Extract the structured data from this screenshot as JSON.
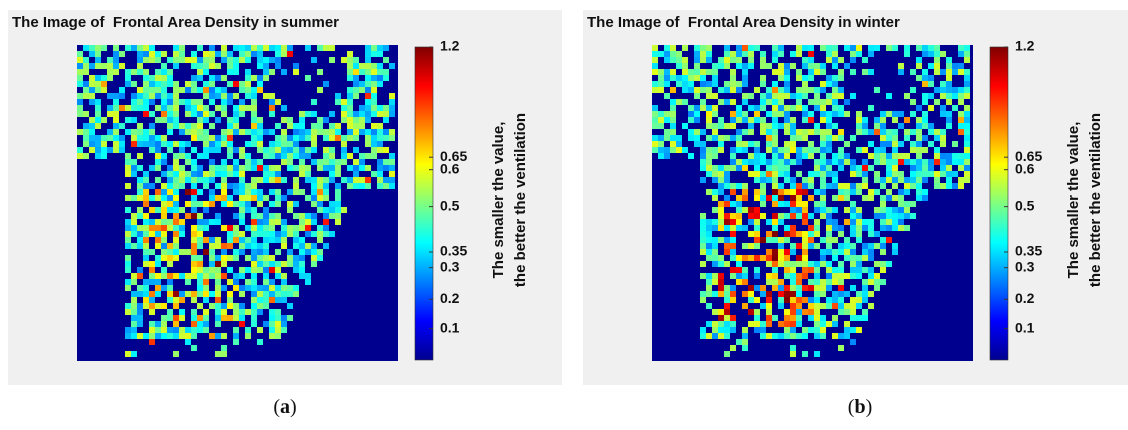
{
  "panels": [
    {
      "title": "The Image of  Frontal Area Density in summer",
      "colorbar": {
        "ticks": [
          1.2,
          0.65,
          0.6,
          0.5,
          0.35,
          0.3,
          0.2,
          0.1
        ],
        "label": [
          "The smaller the value,",
          "the better the ventilation"
        ]
      },
      "caption": [
        "(",
        "a",
        ")"
      ]
    },
    {
      "title": "The Image of  Frontal Area Density in winter",
      "colorbar": {
        "ticks": [
          1.2,
          0.65,
          0.6,
          0.5,
          0.35,
          0.3,
          0.2,
          0.1
        ],
        "label": [
          "The smaller the value,",
          "the better the ventilation"
        ]
      },
      "caption": [
        "(",
        "b",
        ")"
      ]
    }
  ]
}
